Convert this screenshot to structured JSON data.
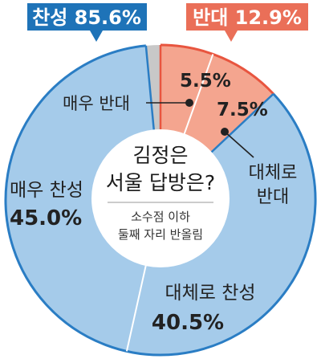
{
  "chart_data": {
    "type": "pie",
    "title": "김정은 서울 답방은?",
    "title_lines": [
      "김정은",
      "서울 답방은?"
    ],
    "note_lines": [
      "소수점 이하",
      "둘째 자리 반올림"
    ],
    "groups": [
      {
        "label": "찬성 85.6%",
        "color": "#1e73b8"
      },
      {
        "label": "반대 12.9%",
        "color": "#ea6f58"
      }
    ],
    "slices": [
      {
        "label": "매우 반대",
        "value": 5.5,
        "value_text": "5.5%",
        "color": "#f4a58f",
        "group": "반대"
      },
      {
        "label": "대체로 반대",
        "label_lines": [
          "대체로",
          "반대"
        ],
        "value": 7.5,
        "value_text": "7.5%",
        "color": "#f4a58f",
        "group": "반대"
      },
      {
        "label": "대체로 찬성",
        "value": 40.5,
        "value_text": "40.5%",
        "color": "#a5cbea",
        "group": "찬성"
      },
      {
        "label": "매우 찬성",
        "value": 45.0,
        "value_text": "45.0%",
        "color": "#a5cbea",
        "group": "찬성"
      },
      {
        "label": "",
        "value": 1.5,
        "value_text": "",
        "color": "#c8c8c8",
        "group": ""
      }
    ],
    "colors": {
      "approve_slice": "#a5cbea",
      "oppose_slice": "#f4a58f",
      "remainder_slice": "#c8c8c8",
      "approve_badge": "#1e73b8",
      "oppose_badge": "#ea6f58",
      "approve_stroke": "#2a7dc4",
      "oppose_stroke": "#e8553f"
    }
  }
}
